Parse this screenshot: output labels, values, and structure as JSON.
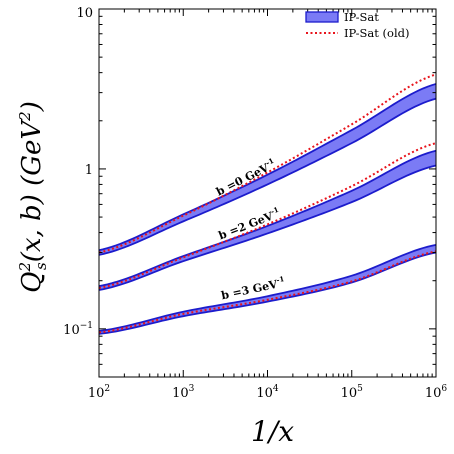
{
  "chart_data": {
    "type": "area",
    "xlabel": "1/x",
    "ylabel": "Q_s^2(x,b) (GeV^2)",
    "xscale": "log",
    "yscale": "log",
    "xlim": [
      100,
      1000000
    ],
    "ylim": [
      0.05,
      10
    ],
    "x_ticks": [
      {
        "value": 100,
        "mantissa": "10",
        "exp": "2"
      },
      {
        "value": 1000,
        "mantissa": "10",
        "exp": "3"
      },
      {
        "value": 10000,
        "mantissa": "10",
        "exp": "4"
      },
      {
        "value": 100000,
        "mantissa": "10",
        "exp": "5"
      },
      {
        "value": 1000000,
        "mantissa": "10",
        "exp": "6"
      }
    ],
    "y_ticks": [
      {
        "value": 0.1,
        "mantissa": "10",
        "exp": "−1"
      },
      {
        "value": 1,
        "mantissa": "1",
        "exp": ""
      },
      {
        "value": 10,
        "mantissa": "10",
        "exp": ""
      }
    ],
    "legend": {
      "placement": "top-right",
      "entries": [
        {
          "label": "IP-Sat",
          "style": "band"
        },
        {
          "label": "IP-Sat (old)",
          "style": "dotted"
        }
      ]
    },
    "x": [
      100,
      1000,
      10000,
      100000,
      1000000
    ],
    "series": [
      {
        "annotation": "b =0 GeV",
        "annotation_sup": "-1",
        "band_upper": [
          0.31,
          0.52,
          0.92,
          1.75,
          3.4
        ],
        "band_lower": [
          0.29,
          0.47,
          0.8,
          1.45,
          2.75
        ],
        "old": [
          0.3,
          0.51,
          0.95,
          1.9,
          3.9
        ]
      },
      {
        "annotation": "b =2 GeV",
        "annotation_sup": "-1",
        "band_upper": [
          0.185,
          0.285,
          0.44,
          0.73,
          1.3
        ],
        "band_lower": [
          0.175,
          0.265,
          0.395,
          0.62,
          1.05
        ],
        "old": [
          0.18,
          0.28,
          0.45,
          0.78,
          1.45
        ]
      },
      {
        "annotation": "b =3 GeV",
        "annotation_sup": "-1",
        "band_upper": [
          0.097,
          0.128,
          0.16,
          0.215,
          0.335
        ],
        "band_lower": [
          0.093,
          0.12,
          0.148,
          0.195,
          0.3
        ],
        "old": [
          0.095,
          0.124,
          0.152,
          0.198,
          0.305
        ]
      }
    ],
    "colors": {
      "band_fill": "#7b7bf5",
      "band_edge": "#1c1ccc",
      "old_line": "#e8141c",
      "axis": "#000000"
    }
  }
}
